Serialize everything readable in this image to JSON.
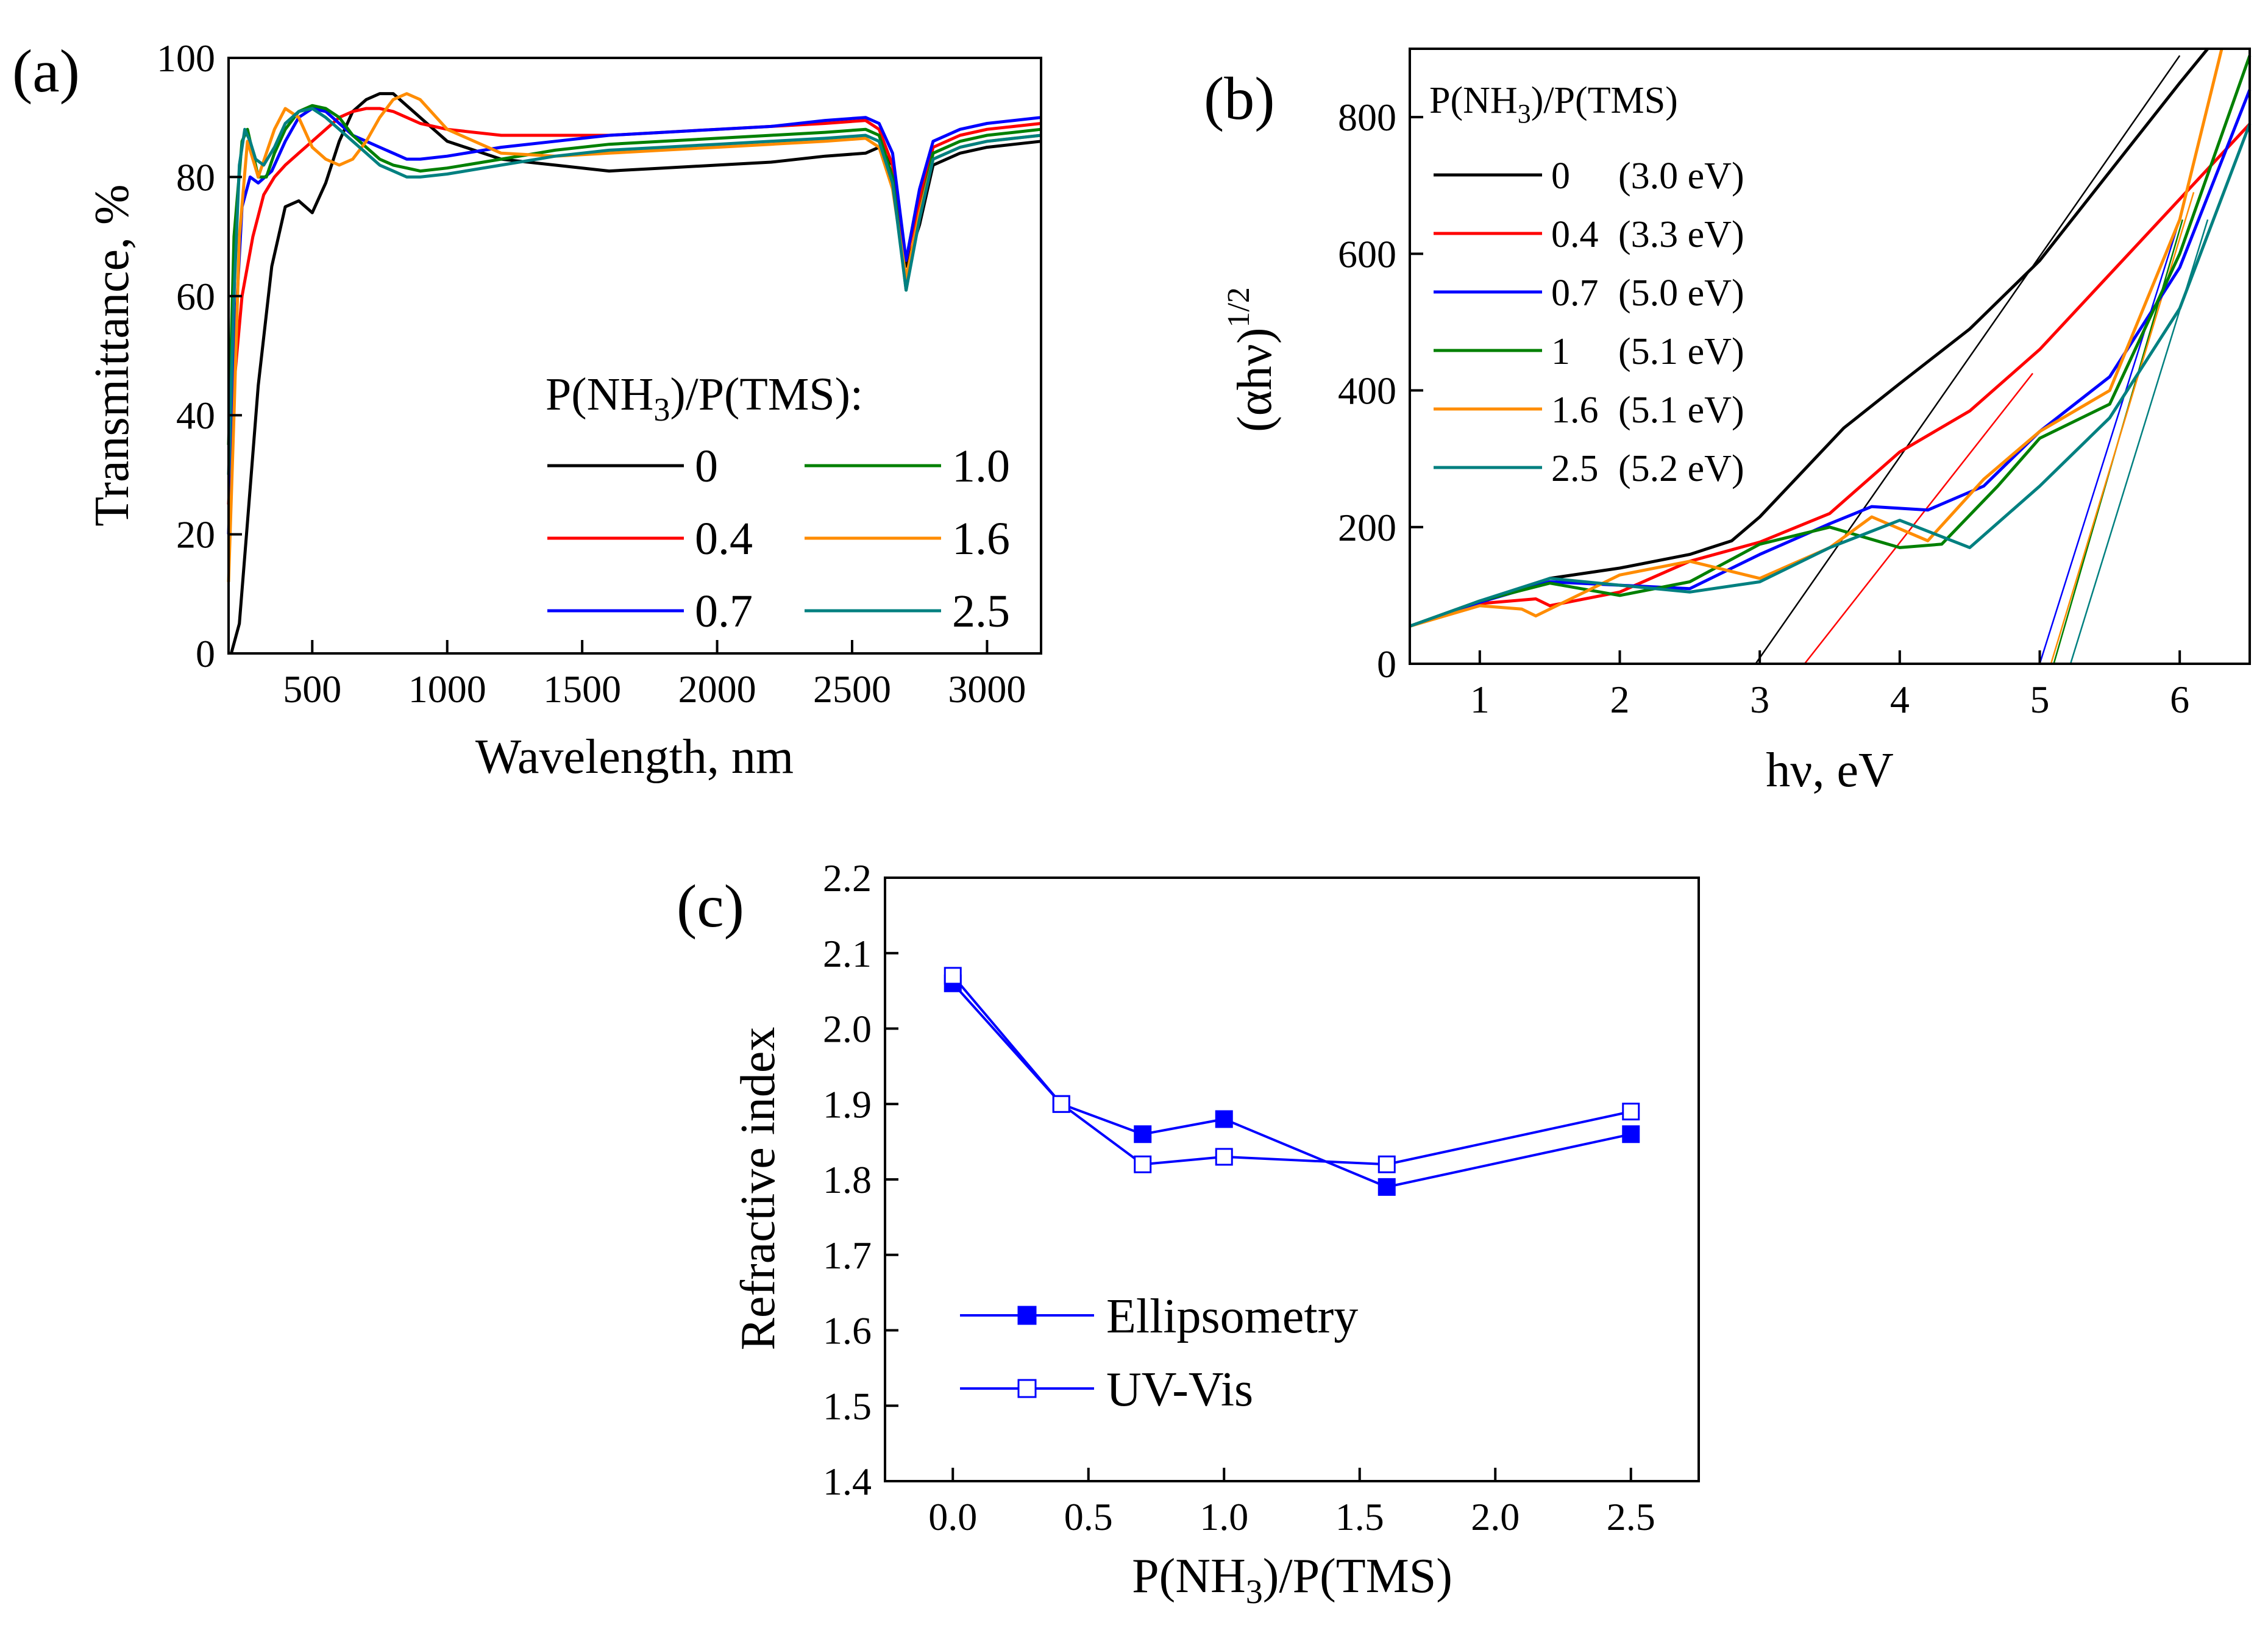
{
  "chart_data": [
    {
      "id": "a",
      "type": "line",
      "panel_label": "(a)",
      "xlabel": "Wavelength, nm",
      "ylabel": "Transmittance, %",
      "xlim": [
        190,
        3200
      ],
      "ylim": [
        0,
        100
      ],
      "xticks": [
        500,
        1000,
        1500,
        2000,
        2500,
        3000
      ],
      "yticks": [
        0,
        20,
        40,
        60,
        80,
        100
      ],
      "legend_title_parts": [
        "P(NH",
        "3",
        ")/P(TMS):"
      ],
      "series": [
        {
          "name": "0",
          "color": "#000000",
          "x": [
            200,
            230,
            260,
            300,
            350,
            400,
            450,
            500,
            550,
            600,
            650,
            700,
            750,
            800,
            850,
            900,
            1000,
            1200,
            1400,
            1600,
            1800,
            2000,
            2200,
            2400,
            2550,
            2600,
            2650,
            2700,
            2750,
            2800,
            2900,
            3000,
            3100,
            3200
          ],
          "y": [
            0,
            5,
            22,
            45,
            65,
            75,
            76,
            74,
            79,
            86,
            91,
            93,
            94,
            94,
            92,
            90,
            86,
            83,
            82,
            81,
            81.5,
            82,
            82.5,
            83.5,
            84,
            85,
            82,
            65,
            72,
            82,
            84,
            85,
            85.5,
            86
          ]
        },
        {
          "name": "0.4",
          "color": "#ff0000",
          "x": [
            190,
            210,
            240,
            280,
            320,
            360,
            400,
            450,
            500,
            550,
            600,
            650,
            700,
            750,
            800,
            850,
            900,
            1000,
            1200,
            1400,
            1600,
            1800,
            2000,
            2200,
            2400,
            2550,
            2600,
            2650,
            2700,
            2750,
            2800,
            2900,
            3000,
            3100,
            3200
          ],
          "y": [
            25,
            45,
            60,
            70,
            77,
            80,
            82,
            84,
            86,
            88,
            90,
            91,
            91.5,
            91.5,
            91,
            90,
            89,
            88,
            87,
            87,
            87,
            87.5,
            88,
            88.5,
            89,
            89.5,
            88,
            82,
            66,
            76,
            85,
            87,
            88,
            88.5,
            89
          ]
        },
        {
          "name": "0.7",
          "color": "#0000ff",
          "x": [
            190,
            210,
            240,
            270,
            300,
            350,
            400,
            450,
            500,
            550,
            600,
            650,
            700,
            750,
            800,
            850,
            900,
            1000,
            1200,
            1400,
            1600,
            1800,
            2000,
            2200,
            2400,
            2550,
            2600,
            2650,
            2700,
            2750,
            2800,
            2900,
            3000,
            3100,
            3200
          ],
          "y": [
            20,
            50,
            75,
            80,
            79,
            81,
            86,
            90,
            91.5,
            91,
            89,
            87,
            86,
            85,
            84,
            83,
            83,
            83.5,
            85,
            86,
            87,
            87.5,
            88,
            88.5,
            89.5,
            90,
            89,
            84,
            66,
            78,
            86,
            88,
            89,
            89.5,
            90
          ]
        },
        {
          "name": "1.0",
          "color": "#008000",
          "x": [
            190,
            210,
            240,
            260,
            280,
            300,
            330,
            360,
            400,
            450,
            500,
            550,
            600,
            650,
            700,
            750,
            800,
            850,
            900,
            1000,
            1200,
            1400,
            1600,
            1800,
            2000,
            2200,
            2400,
            2550,
            2600,
            2650,
            2700,
            2750,
            2800,
            2900,
            3000,
            3100,
            3200
          ],
          "y": [
            35,
            70,
            86,
            88,
            84,
            80,
            80,
            84,
            88,
            91,
            92,
            91.5,
            90,
            87,
            85,
            83,
            82,
            81.5,
            81,
            81.5,
            83,
            84.5,
            85.5,
            86,
            86.5,
            87,
            87.5,
            88,
            87,
            80,
            61,
            74,
            84,
            86,
            87,
            87.5,
            88
          ]
        },
        {
          "name": "1.6",
          "color": "#ff8c00",
          "x": [
            190,
            210,
            230,
            260,
            300,
            330,
            360,
            400,
            450,
            500,
            550,
            600,
            650,
            700,
            750,
            800,
            850,
            900,
            1000,
            1200,
            1400,
            1600,
            1800,
            2000,
            2200,
            2400,
            2550,
            2600,
            2650,
            2700,
            2750,
            2800,
            2900,
            3000,
            3100,
            3200
          ],
          "y": [
            12,
            40,
            70,
            86,
            80,
            84,
            88,
            91.5,
            90,
            85,
            83,
            82,
            83,
            86,
            90,
            93,
            94,
            93,
            88,
            84,
            83.5,
            84,
            84.5,
            85,
            85.5,
            86,
            86.5,
            85,
            78,
            63,
            74,
            83,
            85,
            86,
            86.5,
            87
          ]
        },
        {
          "name": "2.5",
          "color": "#008080",
          "x": [
            190,
            210,
            230,
            250,
            270,
            290,
            320,
            360,
            400,
            450,
            500,
            550,
            600,
            650,
            700,
            750,
            800,
            850,
            900,
            1000,
            1200,
            1400,
            1600,
            1800,
            2000,
            2200,
            2400,
            2550,
            2600,
            2650,
            2700,
            2750,
            2800,
            2900,
            3000,
            3100,
            3200
          ],
          "y": [
            30,
            60,
            82,
            88,
            86,
            83,
            82,
            85,
            89,
            91,
            91.5,
            90,
            88,
            86,
            84,
            82,
            81,
            80,
            80,
            80.5,
            82,
            83.5,
            84.5,
            85,
            85.5,
            86,
            86.5,
            87,
            86,
            79,
            61,
            73,
            83,
            85,
            86,
            86.5,
            87
          ]
        }
      ]
    },
    {
      "id": "b",
      "type": "line",
      "panel_label": "(b)",
      "xlabel": "hν, eV",
      "ylabel_parts": [
        "(αhν)",
        "1/2"
      ],
      "xlim": [
        0.5,
        6.5
      ],
      "ylim": [
        0,
        900
      ],
      "xticks": [
        1,
        2,
        3,
        4,
        5,
        6
      ],
      "yticks": [
        0,
        200,
        400,
        600,
        800
      ],
      "legend_title_parts": [
        "P(NH",
        "3",
        ")/P(TMS)"
      ],
      "series": [
        {
          "name": "0",
          "label_gap": "(3.0 eV)",
          "color": "#000000",
          "x": [
            0.5,
            1.0,
            1.5,
            2.0,
            2.5,
            2.8,
            3.0,
            3.3,
            3.6,
            4.0,
            4.5,
            5.0,
            5.5,
            6.0,
            6.2
          ],
          "y": [
            55,
            90,
            125,
            140,
            160,
            180,
            215,
            280,
            345,
            410,
            490,
            590,
            720,
            850,
            900
          ]
        },
        {
          "name": "0.4",
          "label_gap": "(3.3 eV)",
          "color": "#ff0000",
          "x": [
            0.5,
            1.0,
            1.4,
            1.5,
            2.0,
            2.5,
            3.0,
            3.5,
            4.0,
            4.5,
            5.0,
            5.5,
            6.0,
            6.5
          ],
          "y": [
            55,
            88,
            95,
            85,
            105,
            150,
            178,
            220,
            310,
            370,
            460,
            570,
            680,
            790
          ]
        },
        {
          "name": "0.7",
          "label_gap": "(5.0 eV)",
          "color": "#0000ff",
          "x": [
            0.5,
            1.0,
            1.5,
            2.0,
            2.5,
            3.0,
            3.5,
            3.8,
            4.2,
            4.6,
            5.0,
            5.5,
            6.0,
            6.5
          ],
          "y": [
            55,
            90,
            120,
            115,
            110,
            160,
            205,
            230,
            225,
            260,
            340,
            420,
            580,
            840
          ]
        },
        {
          "name": "1",
          "label_gap": "(5.1 eV)",
          "color": "#008000",
          "x": [
            0.5,
            1.0,
            1.5,
            2.0,
            2.5,
            3.0,
            3.5,
            4.0,
            4.3,
            4.7,
            5.0,
            5.5,
            6.0,
            6.5
          ],
          "y": [
            55,
            92,
            118,
            100,
            120,
            175,
            200,
            170,
            175,
            260,
            330,
            380,
            600,
            890
          ]
        },
        {
          "name": "1.6",
          "label_gap": "(5.1 eV)",
          "color": "#ff8c00",
          "x": [
            0.5,
            1.0,
            1.3,
            1.4,
            1.5,
            2.0,
            2.5,
            3.0,
            3.5,
            3.8,
            4.2,
            4.6,
            5.0,
            5.5,
            6.0,
            6.3
          ],
          "y": [
            55,
            85,
            80,
            70,
            80,
            130,
            150,
            125,
            170,
            215,
            180,
            270,
            340,
            400,
            650,
            900
          ]
        },
        {
          "name": "2.5",
          "label_gap": "(5.2 eV)",
          "color": "#008080",
          "x": [
            0.5,
            1.0,
            1.5,
            2.0,
            2.5,
            3.0,
            3.5,
            4.0,
            4.5,
            5.0,
            5.5,
            6.0,
            6.5
          ],
          "y": [
            55,
            92,
            125,
            115,
            105,
            120,
            170,
            210,
            170,
            260,
            360,
            520,
            790
          ]
        }
      ],
      "fit_lines": [
        {
          "color": "#000000",
          "x": [
            2.97,
            6.0
          ],
          "y": [
            0,
            890
          ]
        },
        {
          "color": "#ff0000",
          "x": [
            3.32,
            4.95
          ],
          "y": [
            0,
            425
          ]
        },
        {
          "color": "#0000ff",
          "x": [
            5.0,
            6.0
          ],
          "y": [
            0,
            650
          ]
        },
        {
          "color": "#008000",
          "x": [
            5.1,
            6.02
          ],
          "y": [
            0,
            650
          ]
        },
        {
          "color": "#ff8c00",
          "x": [
            5.08,
            6.1
          ],
          "y": [
            0,
            690
          ]
        },
        {
          "color": "#008080",
          "x": [
            5.22,
            6.2
          ],
          "y": [
            0,
            650
          ]
        }
      ]
    },
    {
      "id": "c",
      "type": "line",
      "panel_label": "(c)",
      "xlabel_parts": [
        "P(NH",
        "3",
        ")/P(TMS)"
      ],
      "ylabel": "Refractive index",
      "xlim": [
        -0.25,
        2.75
      ],
      "ylim": [
        1.4,
        2.2
      ],
      "xticks": [
        "0.0",
        "0.5",
        "1.0",
        "1.5",
        "2.0",
        "2.5"
      ],
      "yticks": [
        "1.4",
        "1.5",
        "1.6",
        "1.7",
        "1.8",
        "1.9",
        "2.0",
        "2.1",
        "2.2"
      ],
      "categories": [
        0.0,
        0.4,
        0.7,
        1.0,
        1.6,
        2.5
      ],
      "series": [
        {
          "name": "Ellipsometry",
          "marker": "filled-square",
          "color": "#0000ff",
          "values": [
            2.06,
            1.9,
            1.86,
            1.88,
            1.79,
            1.86
          ]
        },
        {
          "name": "UV-Vis",
          "marker": "open-square",
          "color": "#0000ff",
          "values": [
            2.07,
            1.9,
            1.82,
            1.83,
            1.82,
            1.89
          ]
        }
      ]
    }
  ]
}
